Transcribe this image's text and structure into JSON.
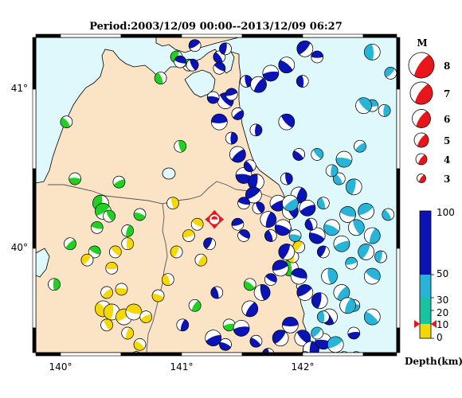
{
  "title": "Period:2003/12/09 00:00--2013/12/09 06:27",
  "axes": {
    "lon_ticks": [
      "140°",
      "141°",
      "142°"
    ],
    "lat_ticks": [
      "41°",
      "40°"
    ],
    "lon_range": [
      139.8,
      142.75
    ],
    "lat_range": [
      39.33,
      41.27
    ]
  },
  "legend": {
    "title": "M",
    "magnitudes": [
      "8",
      "7",
      "6",
      "5",
      "4",
      "3"
    ]
  },
  "colorbar": {
    "labels": [
      "100",
      "50",
      "30",
      "20",
      "10",
      "0"
    ],
    "title": "Depth(km)",
    "marker_depth_km": 10
  },
  "colors": {
    "sea": "#dff8fb",
    "land": "#fbe3c6",
    "shallow_0_10": "#f4d800",
    "green_10_30": "#22d022",
    "cyan_30_50": "#28b4d8",
    "blue_50_100": "#0a14b4",
    "mainshock": "#e8161a"
  },
  "mainshock": {
    "lon": 141.26,
    "lat": 40.15,
    "mag": 4.5,
    "depth_km": 10
  },
  "chart_data": {
    "type": "scatter",
    "x_label": "longitude",
    "y_label": "latitude",
    "columns": [
      "lon",
      "lat",
      "size",
      "depth_class"
    ],
    "events": [
      [
        139.95,
        39.75,
        1,
        "green"
      ],
      [
        140.08,
        40.0,
        1,
        "green"
      ],
      [
        140.12,
        40.4,
        1,
        "green"
      ],
      [
        140.05,
        40.75,
        1,
        "green"
      ],
      [
        140.33,
        40.25,
        2,
        "green"
      ],
      [
        140.35,
        40.2,
        2,
        "green"
      ],
      [
        140.3,
        40.1,
        1,
        "green"
      ],
      [
        140.4,
        40.17,
        1,
        "green"
      ],
      [
        140.55,
        40.08,
        1,
        "green"
      ],
      [
        140.48,
        40.38,
        1,
        "green"
      ],
      [
        140.65,
        40.18,
        1,
        "green"
      ],
      [
        140.82,
        41.02,
        1,
        "green"
      ],
      [
        140.95,
        41.15,
        1,
        "green"
      ],
      [
        141.05,
        41.1,
        1,
        "green"
      ],
      [
        140.28,
        39.95,
        1,
        "green"
      ],
      [
        140.98,
        40.6,
        1,
        "green"
      ],
      [
        141.1,
        39.62,
        1,
        "green"
      ],
      [
        141.38,
        39.5,
        1,
        "green"
      ],
      [
        141.55,
        39.75,
        1,
        "green"
      ],
      [
        141.88,
        39.85,
        2,
        "green"
      ],
      [
        140.22,
        39.9,
        1,
        "yellow"
      ],
      [
        140.42,
        39.85,
        1,
        "yellow"
      ],
      [
        140.45,
        39.95,
        1,
        "yellow"
      ],
      [
        140.55,
        40.0,
        1,
        "yellow"
      ],
      [
        140.38,
        39.7,
        1,
        "yellow"
      ],
      [
        140.5,
        39.72,
        1,
        "yellow"
      ],
      [
        140.35,
        39.6,
        2,
        "yellow"
      ],
      [
        140.42,
        39.58,
        2,
        "yellow"
      ],
      [
        140.52,
        39.55,
        2,
        "yellow"
      ],
      [
        140.6,
        39.58,
        2,
        "yellow"
      ],
      [
        140.38,
        39.5,
        1,
        "yellow"
      ],
      [
        140.55,
        39.45,
        1,
        "yellow"
      ],
      [
        140.7,
        39.55,
        1,
        "yellow"
      ],
      [
        140.8,
        39.68,
        1,
        "yellow"
      ],
      [
        140.88,
        39.78,
        1,
        "yellow"
      ],
      [
        140.95,
        39.95,
        1,
        "yellow"
      ],
      [
        141.05,
        40.05,
        1,
        "yellow"
      ],
      [
        141.12,
        40.12,
        1,
        "yellow"
      ],
      [
        140.92,
        40.25,
        1,
        "yellow"
      ],
      [
        141.15,
        39.9,
        1,
        "yellow"
      ],
      [
        140.62,
        39.3,
        1,
        "yellow"
      ],
      [
        140.65,
        39.38,
        1,
        "yellow"
      ],
      [
        141.9,
        39.92,
        1,
        "yellow"
      ],
      [
        141.95,
        39.98,
        1,
        "yellow"
      ],
      [
        141.3,
        40.75,
        2,
        "blue"
      ],
      [
        141.35,
        40.88,
        2,
        "blue"
      ],
      [
        141.4,
        40.65,
        1,
        "blue"
      ],
      [
        141.45,
        40.55,
        2,
        "blue"
      ],
      [
        141.5,
        40.42,
        2,
        "blue"
      ],
      [
        141.55,
        40.48,
        1,
        "blue"
      ],
      [
        141.6,
        40.38,
        2,
        "blue"
      ],
      [
        141.58,
        40.3,
        2,
        "blue"
      ],
      [
        141.5,
        40.25,
        1,
        "blue"
      ],
      [
        141.62,
        40.22,
        1,
        "blue"
      ],
      [
        141.7,
        40.15,
        2,
        "blue"
      ],
      [
        141.78,
        40.25,
        2,
        "blue"
      ],
      [
        141.82,
        40.1,
        2,
        "blue"
      ],
      [
        141.72,
        40.05,
        1,
        "blue"
      ],
      [
        141.85,
        39.95,
        2,
        "blue"
      ],
      [
        141.8,
        39.85,
        2,
        "blue"
      ],
      [
        141.72,
        39.78,
        1,
        "blue"
      ],
      [
        141.65,
        39.7,
        2,
        "blue"
      ],
      [
        141.55,
        39.6,
        2,
        "blue"
      ],
      [
        141.48,
        39.48,
        2,
        "blue"
      ],
      [
        141.6,
        39.4,
        1,
        "blue"
      ],
      [
        141.7,
        39.32,
        1,
        "blue"
      ],
      [
        141.8,
        39.42,
        2,
        "blue"
      ],
      [
        141.88,
        39.5,
        2,
        "blue"
      ],
      [
        141.98,
        39.42,
        2,
        "blue"
      ],
      [
        142.05,
        39.35,
        2,
        "blue"
      ],
      [
        142.1,
        39.28,
        1,
        "blue"
      ],
      [
        142.15,
        39.4,
        2,
        "blue"
      ],
      [
        142.2,
        39.55,
        2,
        "blue"
      ],
      [
        142.12,
        39.65,
        2,
        "blue"
      ],
      [
        142.0,
        39.7,
        2,
        "blue"
      ],
      [
        141.95,
        39.8,
        2,
        "blue"
      ],
      [
        141.88,
        40.2,
        2,
        "blue"
      ],
      [
        141.95,
        40.3,
        2,
        "blue"
      ],
      [
        142.02,
        40.22,
        2,
        "blue"
      ],
      [
        142.1,
        40.05,
        2,
        "blue"
      ],
      [
        142.05,
        40.12,
        1,
        "blue"
      ],
      [
        142.15,
        39.95,
        1,
        "blue"
      ],
      [
        141.4,
        40.92,
        1,
        "blue"
      ],
      [
        141.3,
        41.08,
        1,
        "blue"
      ],
      [
        141.52,
        41.0,
        1,
        "blue"
      ],
      [
        141.62,
        40.98,
        2,
        "blue"
      ],
      [
        141.72,
        41.05,
        2,
        "blue"
      ],
      [
        141.85,
        41.1,
        2,
        "blue"
      ],
      [
        141.98,
        41.0,
        1,
        "blue"
      ],
      [
        142.0,
        41.2,
        2,
        "blue"
      ],
      [
        142.1,
        41.15,
        1,
        "blue"
      ],
      [
        141.85,
        40.75,
        2,
        "blue"
      ],
      [
        141.6,
        40.7,
        1,
        "blue"
      ],
      [
        141.45,
        40.8,
        1,
        "blue"
      ],
      [
        141.25,
        40.9,
        1,
        "blue"
      ],
      [
        141.3,
        41.15,
        1,
        "blue"
      ],
      [
        141.35,
        41.2,
        1,
        "blue"
      ],
      [
        141.1,
        41.22,
        1,
        "blue"
      ],
      [
        140.98,
        41.12,
        1,
        "blue"
      ],
      [
        141.08,
        41.1,
        1,
        "blue"
      ],
      [
        141.0,
        39.5,
        1,
        "blue"
      ],
      [
        141.25,
        39.42,
        2,
        "blue"
      ],
      [
        141.35,
        39.38,
        1,
        "blue"
      ],
      [
        141.28,
        39.7,
        1,
        "blue"
      ],
      [
        141.22,
        40.0,
        1,
        "blue"
      ],
      [
        141.45,
        40.12,
        1,
        "blue"
      ],
      [
        141.5,
        40.05,
        1,
        "blue"
      ],
      [
        141.85,
        40.4,
        1,
        "blue"
      ],
      [
        142.32,
        39.3,
        1,
        "blue"
      ],
      [
        142.4,
        39.45,
        1,
        "blue"
      ],
      [
        141.95,
        40.55,
        1,
        "blue"
      ],
      [
        142.55,
        41.18,
        2,
        "cyan"
      ],
      [
        142.7,
        41.05,
        1,
        "cyan"
      ],
      [
        142.55,
        40.85,
        1,
        "cyan"
      ],
      [
        142.48,
        40.85,
        2,
        "cyan"
      ],
      [
        142.65,
        40.82,
        1,
        "cyan"
      ],
      [
        142.45,
        40.6,
        1,
        "cyan"
      ],
      [
        142.32,
        40.52,
        2,
        "cyan"
      ],
      [
        142.28,
        40.4,
        1,
        "cyan"
      ],
      [
        142.4,
        40.35,
        2,
        "cyan"
      ],
      [
        142.5,
        40.2,
        2,
        "cyan"
      ],
      [
        142.35,
        40.18,
        2,
        "cyan"
      ],
      [
        142.42,
        40.1,
        2,
        "cyan"
      ],
      [
        142.55,
        40.05,
        2,
        "cyan"
      ],
      [
        142.3,
        40.0,
        2,
        "cyan"
      ],
      [
        142.22,
        40.1,
        2,
        "cyan"
      ],
      [
        142.15,
        40.25,
        1,
        "cyan"
      ],
      [
        142.5,
        39.95,
        2,
        "cyan"
      ],
      [
        142.38,
        39.88,
        1,
        "cyan"
      ],
      [
        142.55,
        39.8,
        2,
        "cyan"
      ],
      [
        142.2,
        39.8,
        2,
        "cyan"
      ],
      [
        142.3,
        39.7,
        2,
        "cyan"
      ],
      [
        142.4,
        39.62,
        1,
        "cyan"
      ],
      [
        142.55,
        39.55,
        2,
        "cyan"
      ],
      [
        142.15,
        39.55,
        1,
        "cyan"
      ],
      [
        142.1,
        39.45,
        1,
        "cyan"
      ],
      [
        142.42,
        39.3,
        1,
        "cyan"
      ],
      [
        142.1,
        40.55,
        1,
        "cyan"
      ],
      [
        142.22,
        40.45,
        1,
        "cyan"
      ],
      [
        141.88,
        40.25,
        2,
        "cyan"
      ],
      [
        141.92,
        40.05,
        1,
        "cyan"
      ],
      [
        142.68,
        40.18,
        1,
        "cyan"
      ],
      [
        142.62,
        39.92,
        1,
        "cyan"
      ],
      [
        142.25,
        39.38,
        2,
        "cyan"
      ],
      [
        142.0,
        39.3,
        1,
        "cyan"
      ],
      [
        142.2,
        39.22,
        1,
        "cyan"
      ],
      [
        142.35,
        39.62,
        2,
        "cyan"
      ]
    ]
  }
}
